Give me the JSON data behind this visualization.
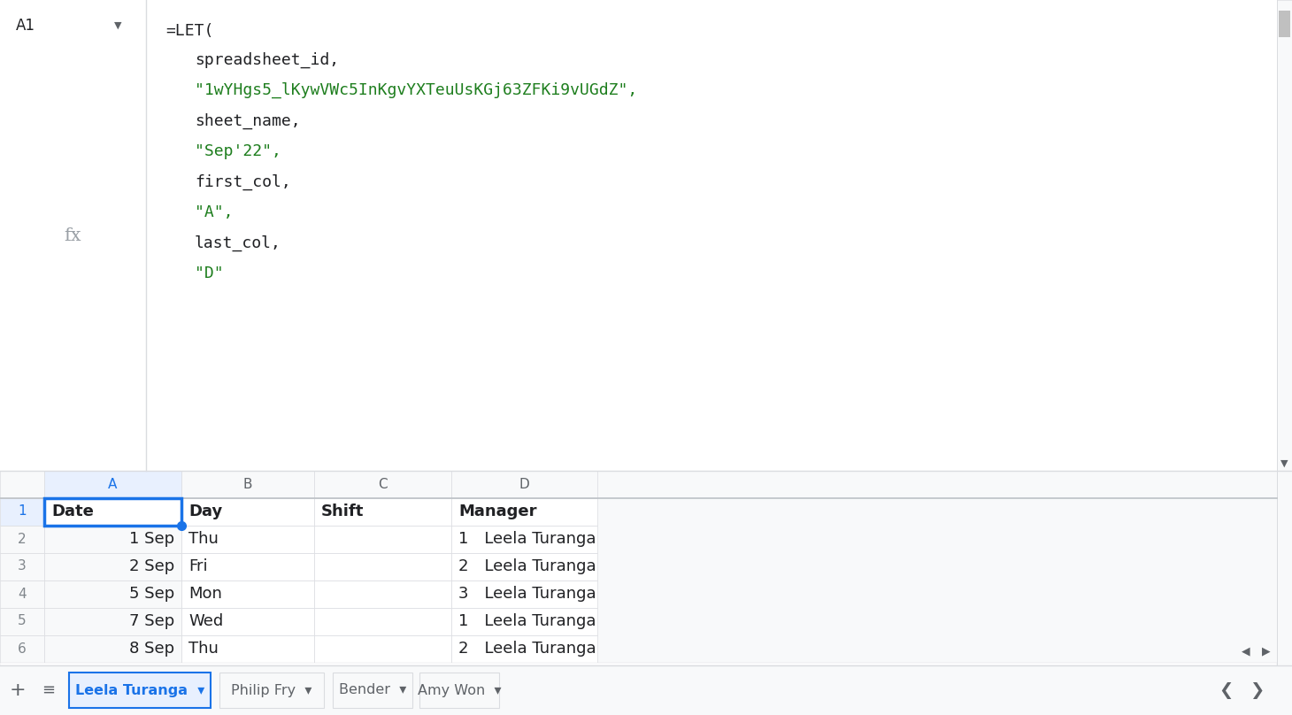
{
  "formula_lines": [
    {
      "text": "=LET(",
      "color": "#202124",
      "indent": 0
    },
    {
      "text": "spreadsheet_id,",
      "color": "#202124",
      "indent": 1
    },
    {
      "text": "\"1wYHgs5_lKywVWc5InKgvYXTeuUsKGj63ZFKi9vUGdZ\",",
      "color": "#1e7e1e",
      "indent": 1
    },
    {
      "text": "sheet_name,",
      "color": "#202124",
      "indent": 1
    },
    {
      "text": "\"Sep'22\",",
      "color": "#1e7e1e",
      "indent": 1
    },
    {
      "text": "first_col,",
      "color": "#202124",
      "indent": 1
    },
    {
      "text": "\"A\",",
      "color": "#1e7e1e",
      "indent": 1
    },
    {
      "text": "last_col,",
      "color": "#202124",
      "indent": 1
    },
    {
      "text": "\"D\"",
      "color": "#1e7e1e",
      "indent": 1
    }
  ],
  "rows": [
    {
      "num": "1",
      "A": "Date",
      "B": "Day",
      "C": "Shift",
      "D": "Manager",
      "A_r": false,
      "C_r": false,
      "D_r": false,
      "header": true
    },
    {
      "num": "2",
      "A": "1 Sep",
      "B": "Thu",
      "C": "",
      "D": "1 Leela Turanga",
      "A_r": true,
      "C_r": true,
      "D_r": false,
      "header": false
    },
    {
      "num": "3",
      "A": "2 Sep",
      "B": "Fri",
      "C": "",
      "D": "2 Leela Turanga",
      "A_r": true,
      "C_r": true,
      "D_r": false,
      "header": false
    },
    {
      "num": "4",
      "A": "5 Sep",
      "B": "Mon",
      "C": "",
      "D": "3 Leela Turanga",
      "A_r": true,
      "C_r": true,
      "D_r": false,
      "header": false
    },
    {
      "num": "5",
      "A": "7 Sep",
      "B": "Wed",
      "C": "",
      "D": "1 Leela Turanga",
      "A_r": true,
      "C_r": true,
      "D_r": false,
      "header": false
    },
    {
      "num": "6",
      "A": "8 Sep",
      "B": "Thu",
      "C": "",
      "D": "2 Leela Turanga",
      "A_r": true,
      "C_r": true,
      "D_r": false,
      "header": false
    }
  ],
  "tabs": [
    "Leela Turanga",
    "Philip Fry",
    "Bender",
    "Amy Won"
  ],
  "active_tab": "Leela Turanga",
  "cell_ref": "A1",
  "formula_fontsize": 13.0,
  "cell_fontsize": 13.0,
  "tab_fontsize": 11.5
}
